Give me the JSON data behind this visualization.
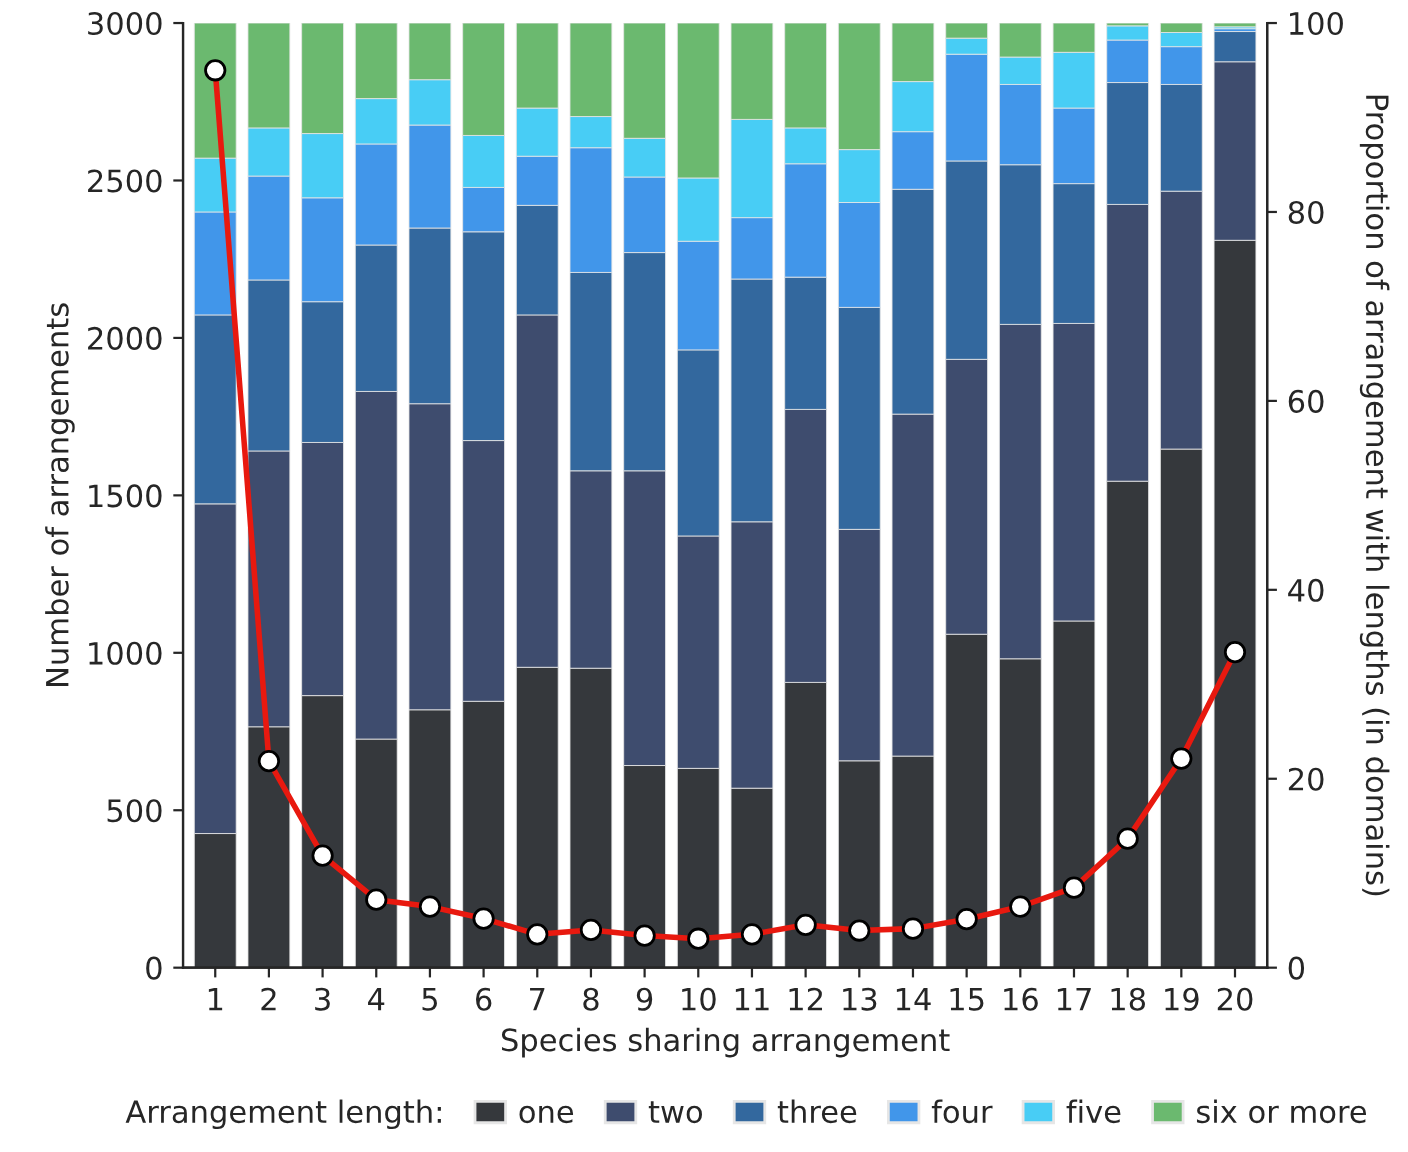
{
  "chart_data": {
    "type": "bar",
    "xlabel": "Species sharing arrangement",
    "ylabel": "Number of arrangements",
    "y2label": "Proportion of arrangement with lengths (in domains)",
    "legend_title": "Arrangement length:",
    "legend": "bottom",
    "stacked": true,
    "marker": "circle",
    "categories": [
      "1",
      "2",
      "3",
      "4",
      "5",
      "6",
      "7",
      "8",
      "9",
      "10",
      "11",
      "12",
      "13",
      "14",
      "15",
      "16",
      "17",
      "18",
      "19",
      "20"
    ],
    "ylim": [
      0,
      3000
    ],
    "yticks": [
      0,
      500,
      1000,
      1500,
      2000,
      2500,
      3000
    ],
    "y2lim": [
      0,
      100
    ],
    "y2ticks": [
      0,
      20,
      40,
      60,
      80,
      100
    ],
    "series": [
      {
        "name": "one",
        "axis": "y2",
        "color": "#35383c",
        "values": [
          14.2,
          25.5,
          28.8,
          24.2,
          27.3,
          28.2,
          31.8,
          31.7,
          21.4,
          21.1,
          19.0,
          30.2,
          21.9,
          22.4,
          35.3,
          32.7,
          36.7,
          51.5,
          54.9,
          77.0
        ]
      },
      {
        "name": "two",
        "axis": "y2",
        "color": "#3e4c6e",
        "values": [
          34.9,
          29.2,
          26.8,
          36.8,
          32.4,
          27.6,
          37.3,
          20.9,
          31.2,
          24.6,
          28.2,
          28.9,
          24.5,
          36.2,
          29.1,
          35.4,
          31.5,
          29.3,
          27.3,
          18.9
        ]
      },
      {
        "name": "three",
        "axis": "y2",
        "color": "#33689e",
        "values": [
          20.0,
          18.1,
          14.9,
          15.5,
          18.6,
          22.1,
          11.6,
          21.0,
          23.1,
          19.7,
          25.7,
          14.0,
          23.5,
          23.8,
          21.0,
          16.9,
          14.8,
          12.9,
          11.3,
          3.2
        ]
      },
      {
        "name": "four",
        "axis": "y2",
        "color": "#4196ea",
        "values": [
          10.9,
          11.0,
          11.0,
          10.7,
          10.9,
          4.7,
          5.2,
          13.2,
          8.0,
          11.5,
          6.5,
          12.0,
          11.1,
          6.1,
          11.3,
          8.5,
          8.0,
          4.5,
          4.0,
          0.3
        ]
      },
      {
        "name": "five",
        "axis": "y2",
        "color": "#48cdf5",
        "values": [
          5.7,
          5.1,
          6.8,
          4.8,
          4.8,
          5.5,
          5.1,
          3.3,
          4.1,
          6.7,
          10.4,
          3.8,
          5.6,
          5.3,
          1.7,
          2.9,
          5.9,
          1.5,
          1.5,
          0.2
        ]
      },
      {
        "name": "six or more",
        "axis": "y2",
        "color": "#6bb96f",
        "values": [
          14.3,
          11.1,
          11.7,
          8.0,
          6.0,
          11.9,
          9.0,
          9.9,
          12.2,
          16.4,
          10.2,
          11.1,
          13.4,
          6.2,
          1.6,
          3.6,
          3.1,
          0.3,
          1.0,
          0.4
        ]
      },
      {
        "type": "line",
        "axis": "y",
        "color": "#e8190f",
        "values": [
          2850,
          656,
          356,
          216,
          194,
          156,
          106,
          120,
          102,
          92,
          106,
          136,
          118,
          124,
          154,
          194,
          254,
          410,
          664,
          1002
        ]
      }
    ]
  }
}
